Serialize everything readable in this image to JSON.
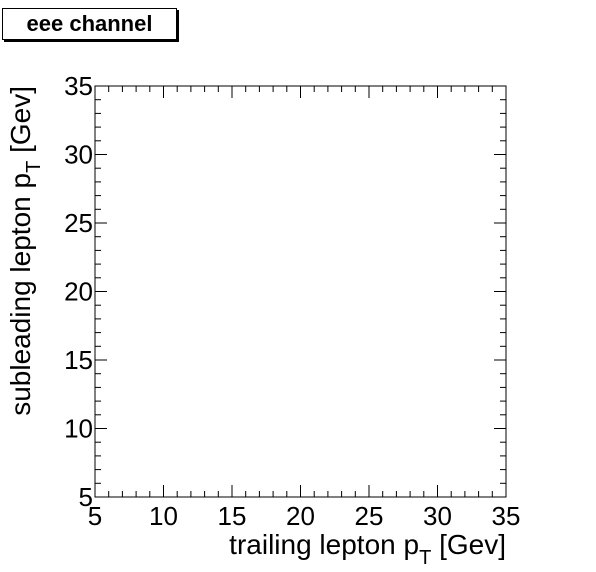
{
  "chart_data": {
    "type": "scatter",
    "title": "eee channel",
    "xlabel": {
      "main": "trailing lepton p",
      "sub": "T",
      "unit": " [Gev]"
    },
    "ylabel": {
      "main": "subleading lepton p",
      "sub": "T",
      "unit": " [Gev]"
    },
    "xlim": [
      5,
      35
    ],
    "ylim": [
      5,
      35
    ],
    "xticks": [
      "5",
      "10",
      "15",
      "20",
      "25",
      "30",
      "35"
    ],
    "yticks": [
      "5",
      "10",
      "15",
      "20",
      "25",
      "30",
      "35"
    ],
    "series": [],
    "grid": false,
    "legend": "none"
  }
}
